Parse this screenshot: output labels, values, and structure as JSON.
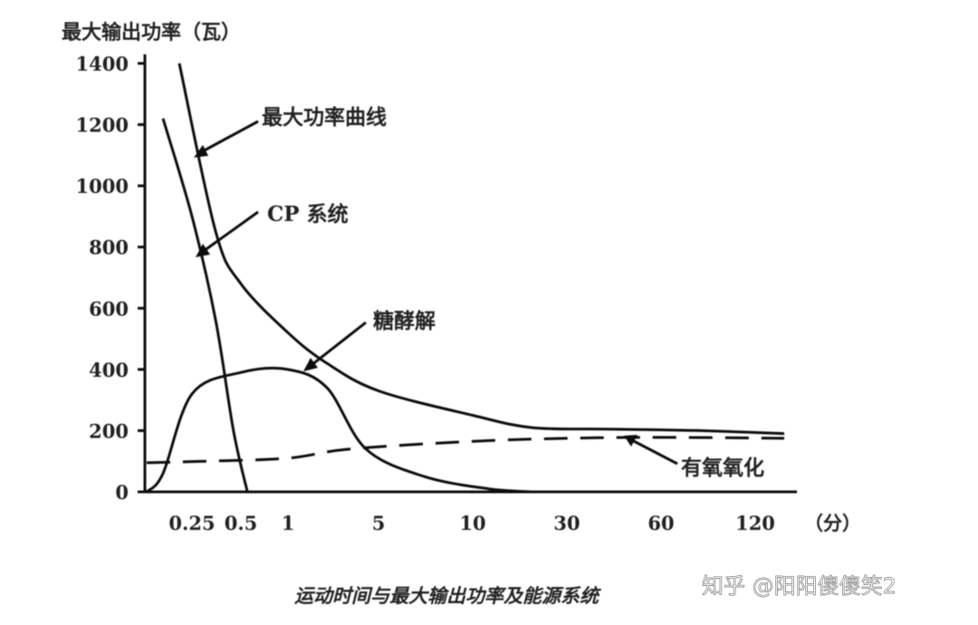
{
  "chart_data": {
    "type": "line",
    "ylabel": "最大输出功率（瓦）",
    "xunit_label": "（分）",
    "caption": "运动时间与最大输出功率及能源系统",
    "ylim": [
      0,
      1400
    ],
    "y_ticks": [
      0,
      200,
      400,
      600,
      800,
      1000,
      1200,
      1400
    ],
    "x_ticks": [
      "0.25",
      "0.5",
      "1",
      "5",
      "10",
      "30",
      "60",
      "120"
    ],
    "x_tick_values": [
      0.25,
      0.5,
      1,
      5,
      10,
      30,
      60,
      120
    ],
    "series": [
      {
        "name": "最大功率曲线",
        "style": "solid",
        "points": [
          [
            0.2,
            1400
          ],
          [
            0.35,
            850
          ],
          [
            0.5,
            680
          ],
          [
            1,
            520
          ],
          [
            2,
            420
          ],
          [
            5,
            330
          ],
          [
            10,
            250
          ],
          [
            20,
            210
          ],
          [
            40,
            205
          ],
          [
            80,
            200
          ],
          [
            150,
            190
          ]
        ]
      },
      {
        "name": "CP 系统",
        "style": "solid",
        "points": [
          [
            0.15,
            1220
          ],
          [
            0.25,
            900
          ],
          [
            0.35,
            560
          ],
          [
            0.45,
            200
          ],
          [
            0.55,
            0
          ]
        ]
      },
      {
        "name": "糖酵解",
        "style": "solid",
        "points": [
          [
            0.1,
            0
          ],
          [
            0.15,
            60
          ],
          [
            0.25,
            320
          ],
          [
            0.5,
            390
          ],
          [
            1,
            400
          ],
          [
            2,
            340
          ],
          [
            4,
            140
          ],
          [
            7,
            50
          ],
          [
            12,
            10
          ],
          [
            20,
            0
          ]
        ]
      },
      {
        "name": "有氧氧化",
        "style": "dashed",
        "points": [
          [
            0.1,
            95
          ],
          [
            0.3,
            100
          ],
          [
            1,
            110
          ],
          [
            3,
            140
          ],
          [
            10,
            165
          ],
          [
            30,
            175
          ],
          [
            60,
            178
          ],
          [
            150,
            175
          ]
        ]
      }
    ],
    "annotations": [
      "最大功率曲线",
      "CP 系统",
      "糖酵解",
      "有氧氧化"
    ],
    "grid": false
  },
  "watermark": "知乎 @阳阳傻傻笑2"
}
